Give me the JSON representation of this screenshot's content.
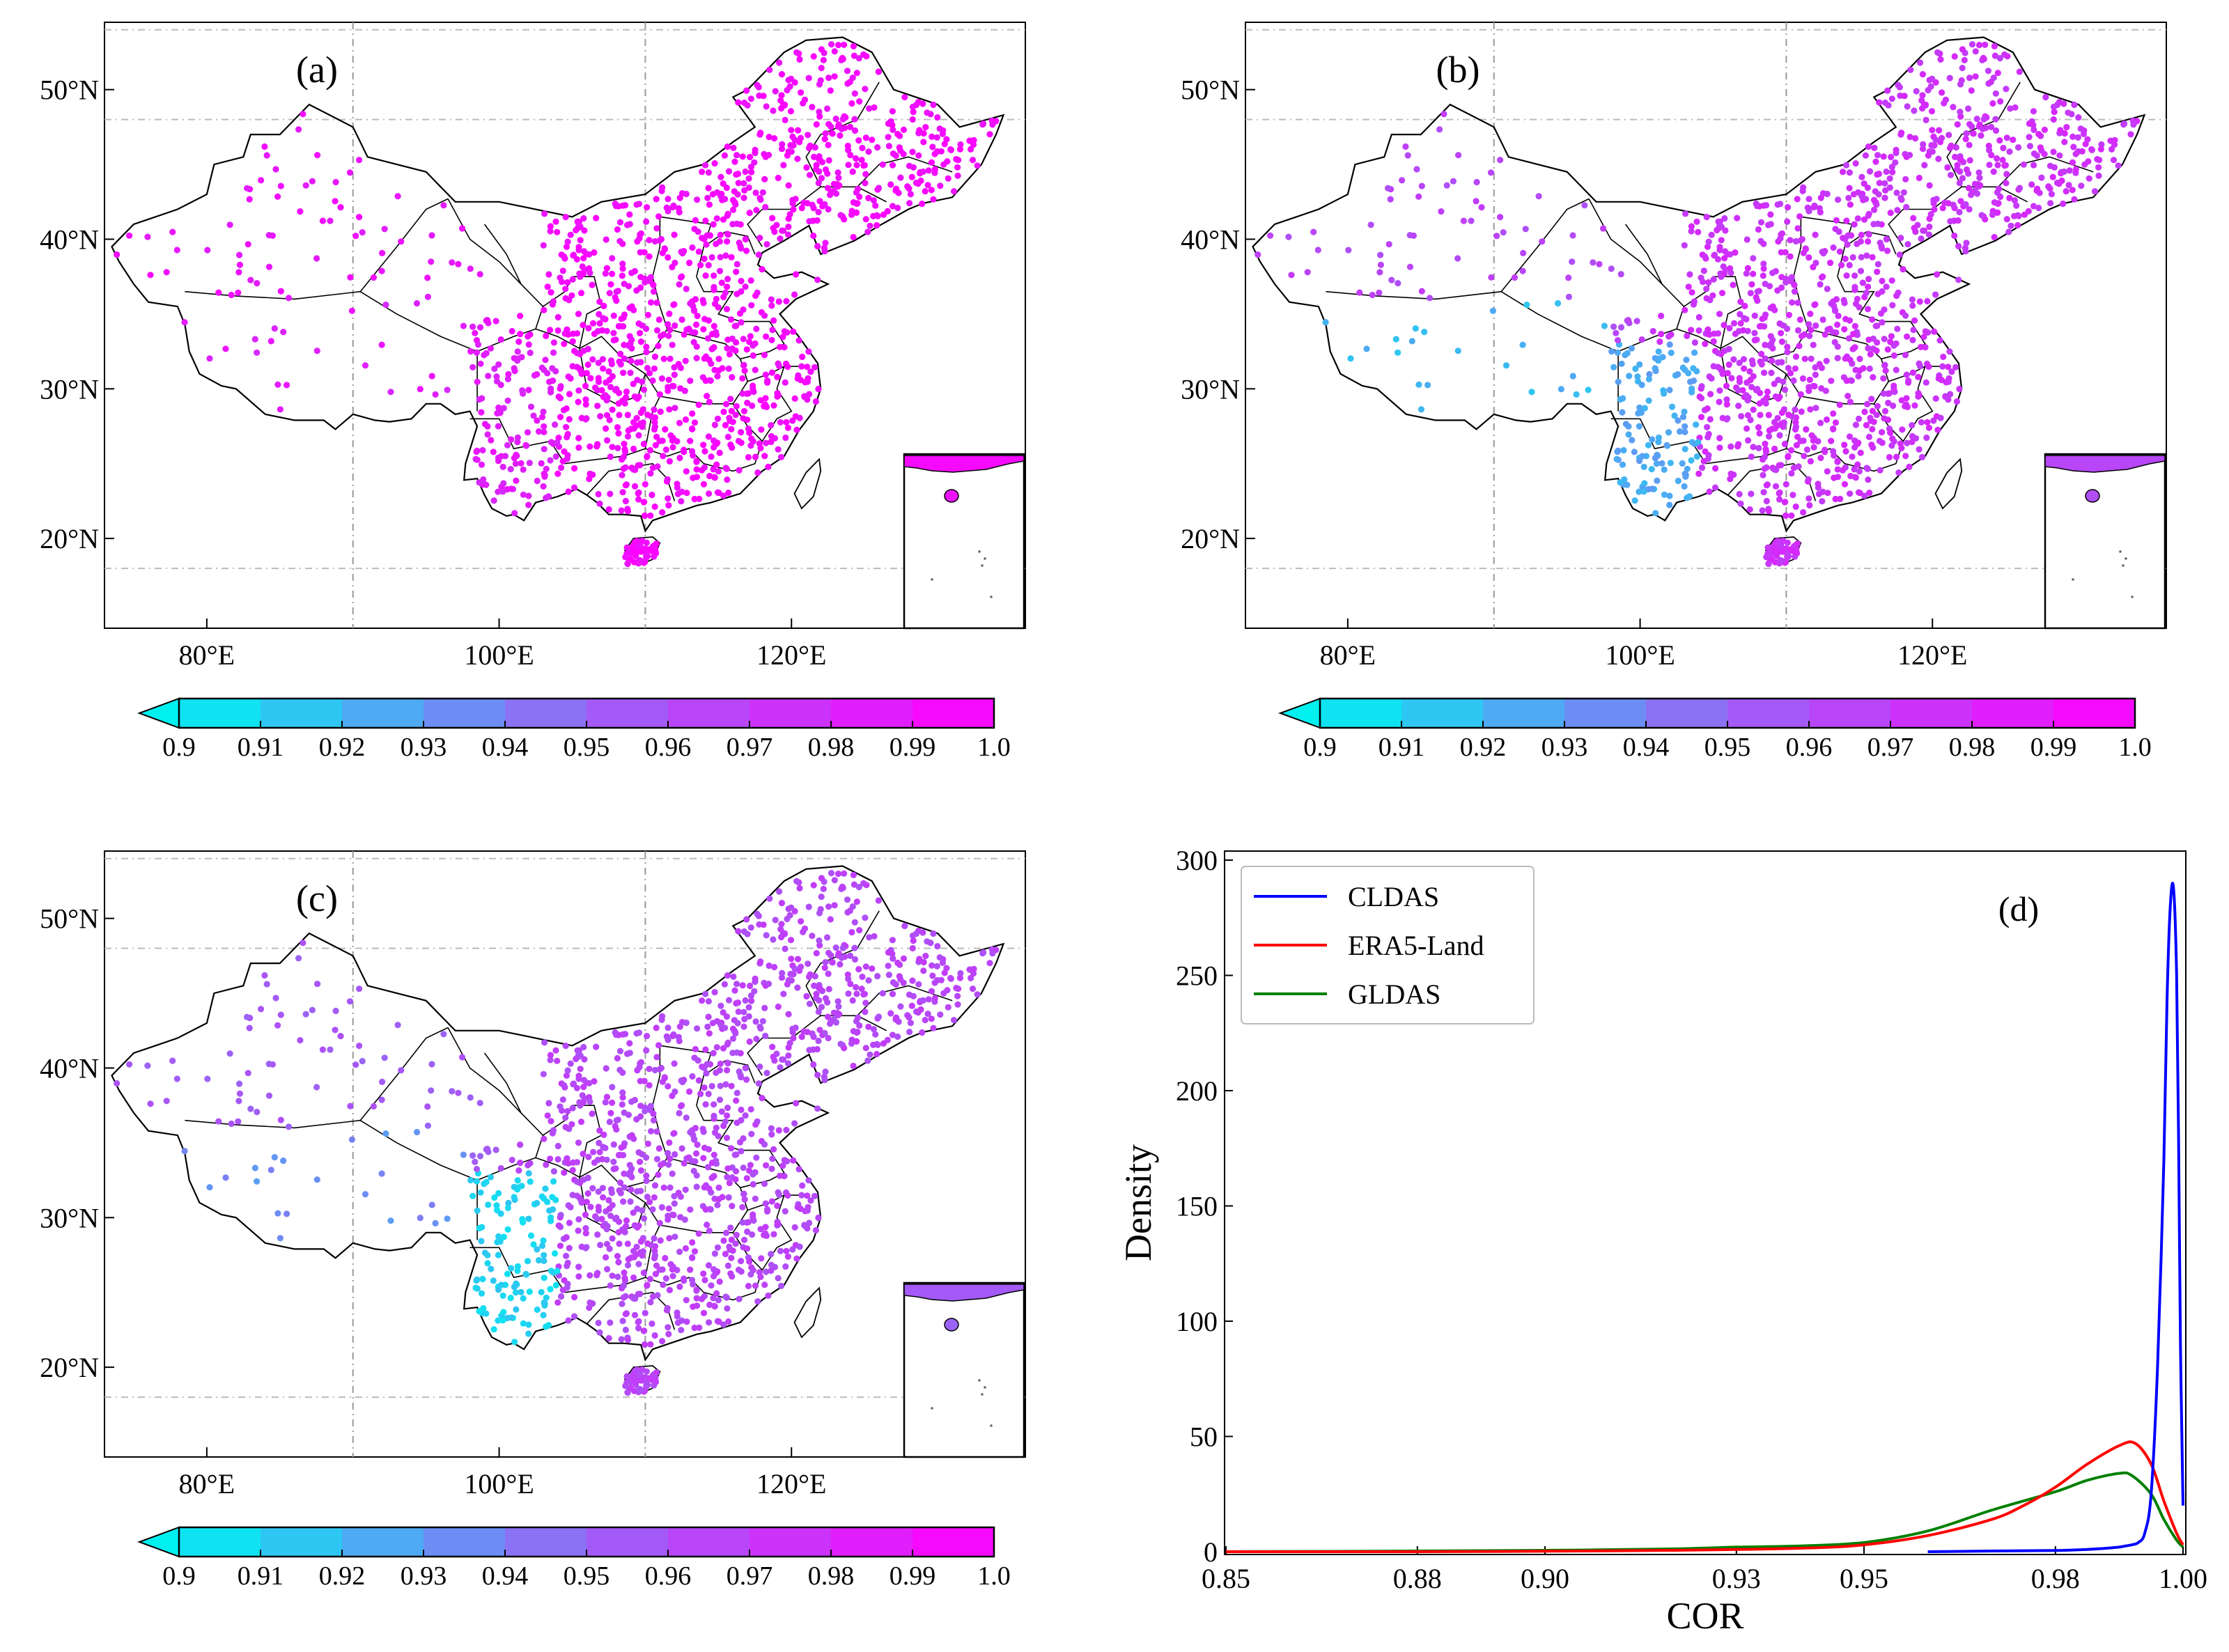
{
  "colormap": {
    "ticks": [
      "0.9",
      "0.91",
      "0.92",
      "0.93",
      "0.94",
      "0.95",
      "0.96",
      "0.97",
      "0.98",
      "0.99",
      "1.0"
    ],
    "low_color": "#00f0f0",
    "mid_color": "#9a64f5",
    "high_color": "#ff00ff",
    "extend": "min"
  },
  "map_axes": {
    "lon_ticks": [
      "80°E",
      "100°E",
      "120°E"
    ],
    "lat_ticks": [
      "50°N",
      "40°N",
      "30°N",
      "20°N"
    ],
    "lon_range": [
      73,
      136
    ],
    "lat_range": [
      14,
      54.5
    ]
  },
  "maps": [
    {
      "label": "(a)",
      "dataset": "CLDAS",
      "east_value": 0.995,
      "west_value": 0.99,
      "tibet_value": 0.985,
      "sw_value": 0.985,
      "inset_value": 0.995
    },
    {
      "label": "(b)",
      "dataset": "ERA5-Land",
      "east_value": 0.975,
      "west_value": 0.965,
      "tibet_value": 0.92,
      "sw_value": 0.925,
      "inset_value": 0.965
    },
    {
      "label": "(c)",
      "dataset": "GLDAS",
      "east_value": 0.965,
      "west_value": 0.955,
      "tibet_value": 0.935,
      "sw_value": 0.91,
      "inset_value": 0.955
    }
  ],
  "chart_data": {
    "type": "line",
    "label": "(d)",
    "xlabel": "COR",
    "ylabel": "Density",
    "xlim": [
      0.85,
      1.0
    ],
    "ylim": [
      0,
      300
    ],
    "x_ticks": [
      "0.85",
      "0.88",
      "0.90",
      "0.93",
      "0.95",
      "0.98",
      "1.00"
    ],
    "y_ticks": [
      "0",
      "50",
      "100",
      "150",
      "200",
      "250",
      "300"
    ],
    "legend_position": "top-left",
    "grid": false,
    "series": [
      {
        "name": "CLDAS",
        "color": "#0000ff",
        "points": [
          [
            0.96,
            0
          ],
          [
            0.97,
            0.3
          ],
          [
            0.98,
            0.5
          ],
          [
            0.985,
            1
          ],
          [
            0.988,
            1.5
          ],
          [
            0.99,
            2
          ],
          [
            0.991,
            2.5
          ],
          [
            0.992,
            3
          ],
          [
            0.993,
            4
          ],
          [
            0.994,
            8
          ],
          [
            0.995,
            25
          ],
          [
            0.996,
            80
          ],
          [
            0.997,
            170
          ],
          [
            0.9975,
            240
          ],
          [
            0.998,
            280
          ],
          [
            0.9985,
            288
          ],
          [
            0.999,
            250
          ],
          [
            0.9993,
            180
          ],
          [
            0.9996,
            90
          ],
          [
            1.0,
            20
          ]
        ]
      },
      {
        "name": "ERA5-Land",
        "color": "#ff0000",
        "points": [
          [
            0.85,
            0
          ],
          [
            0.88,
            0
          ],
          [
            0.9,
            0.2
          ],
          [
            0.92,
            0.6
          ],
          [
            0.94,
            1.5
          ],
          [
            0.95,
            3
          ],
          [
            0.96,
            7
          ],
          [
            0.97,
            14
          ],
          [
            0.975,
            20
          ],
          [
            0.98,
            28
          ],
          [
            0.985,
            38
          ],
          [
            0.99,
            46
          ],
          [
            0.9925,
            47
          ],
          [
            0.995,
            38
          ],
          [
            0.997,
            22
          ],
          [
            0.999,
            8
          ],
          [
            1.0,
            3
          ]
        ]
      },
      {
        "name": "GLDAS",
        "color": "#008000",
        "points": [
          [
            0.85,
            0
          ],
          [
            0.88,
            0.3
          ],
          [
            0.9,
            0.6
          ],
          [
            0.92,
            1.2
          ],
          [
            0.93,
            2
          ],
          [
            0.94,
            2.5
          ],
          [
            0.95,
            4
          ],
          [
            0.96,
            9
          ],
          [
            0.97,
            18
          ],
          [
            0.98,
            26
          ],
          [
            0.985,
            31
          ],
          [
            0.99,
            34
          ],
          [
            0.992,
            33
          ],
          [
            0.995,
            25
          ],
          [
            0.997,
            14
          ],
          [
            0.999,
            5
          ],
          [
            1.0,
            2
          ]
        ]
      }
    ]
  }
}
